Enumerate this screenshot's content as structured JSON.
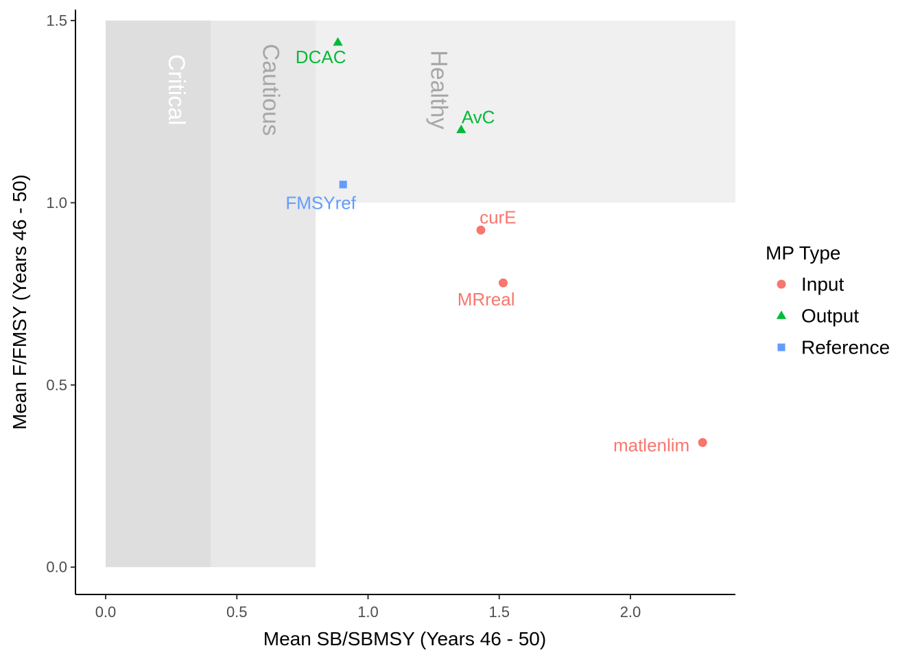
{
  "chart_data": {
    "type": "scatter",
    "xlabel": "Mean SB/SBMSY (Years 46 - 50)",
    "ylabel": "Mean F/FMSY (Years 46 - 50)",
    "xlim": [
      -0.115,
      2.4
    ],
    "ylim": [
      -0.075,
      1.53
    ],
    "x_ticks": [
      0.0,
      0.5,
      1.0,
      1.5,
      2.0
    ],
    "x_tick_labels": [
      "0.0",
      "0.5",
      "1.0",
      "1.5",
      "2.0"
    ],
    "y_ticks": [
      0.0,
      0.5,
      1.0,
      1.5
    ],
    "y_tick_labels": [
      "0.0",
      "0.5",
      "1.0",
      "1.5"
    ],
    "grid": false,
    "legend": {
      "title": "MP Type",
      "position": "right",
      "entries": [
        {
          "name": "Input",
          "color": "#F8766D",
          "shape": "circle"
        },
        {
          "name": "Output",
          "color": "#00BA38",
          "shape": "triangle"
        },
        {
          "name": "Reference",
          "color": "#619CFF",
          "shape": "square"
        }
      ]
    },
    "zones": [
      {
        "label": "Critical",
        "x0": 0.0,
        "x1": 0.4,
        "y0": 0.0,
        "y1": 1.5,
        "fill": "#dedede",
        "label_color": "#ffffff",
        "label_x": 0.24,
        "label_y": 1.31
      },
      {
        "label": "Cautious",
        "x0": 0.4,
        "x1": 0.8,
        "y0": 0.0,
        "y1": 1.5,
        "fill": "#e8e8e8",
        "label_color": "#a6a6a6",
        "label_x": 0.6,
        "label_y": 1.31
      },
      {
        "label": "Healthy",
        "x0": 0.8,
        "x1": 2.4,
        "y0": 1.0,
        "y1": 1.5,
        "fill": "#f0f0f0",
        "label_color": "#a6a6a6",
        "label_x": 1.24,
        "label_y": 1.31
      }
    ],
    "points": [
      {
        "label": "DCAC",
        "x": 0.885,
        "y": 1.44,
        "type": "Output",
        "label_x": 0.82,
        "label_y": 1.4
      },
      {
        "label": "AvC",
        "x": 1.355,
        "y": 1.2,
        "type": "Output",
        "label_x": 1.42,
        "label_y": 1.235
      },
      {
        "label": "FMSYref",
        "x": 0.905,
        "y": 1.05,
        "type": "Reference",
        "label_x": 0.82,
        "label_y": 1.0
      },
      {
        "label": "curE",
        "x": 1.43,
        "y": 0.925,
        "type": "Input",
        "label_x": 1.495,
        "label_y": 0.96
      },
      {
        "label": "MRreal",
        "x": 1.515,
        "y": 0.78,
        "type": "Input",
        "label_x": 1.45,
        "label_y": 0.735
      },
      {
        "label": "matlenlim",
        "x": 2.275,
        "y": 0.342,
        "type": "Input",
        "label_x": 2.08,
        "label_y": 0.335
      }
    ]
  }
}
